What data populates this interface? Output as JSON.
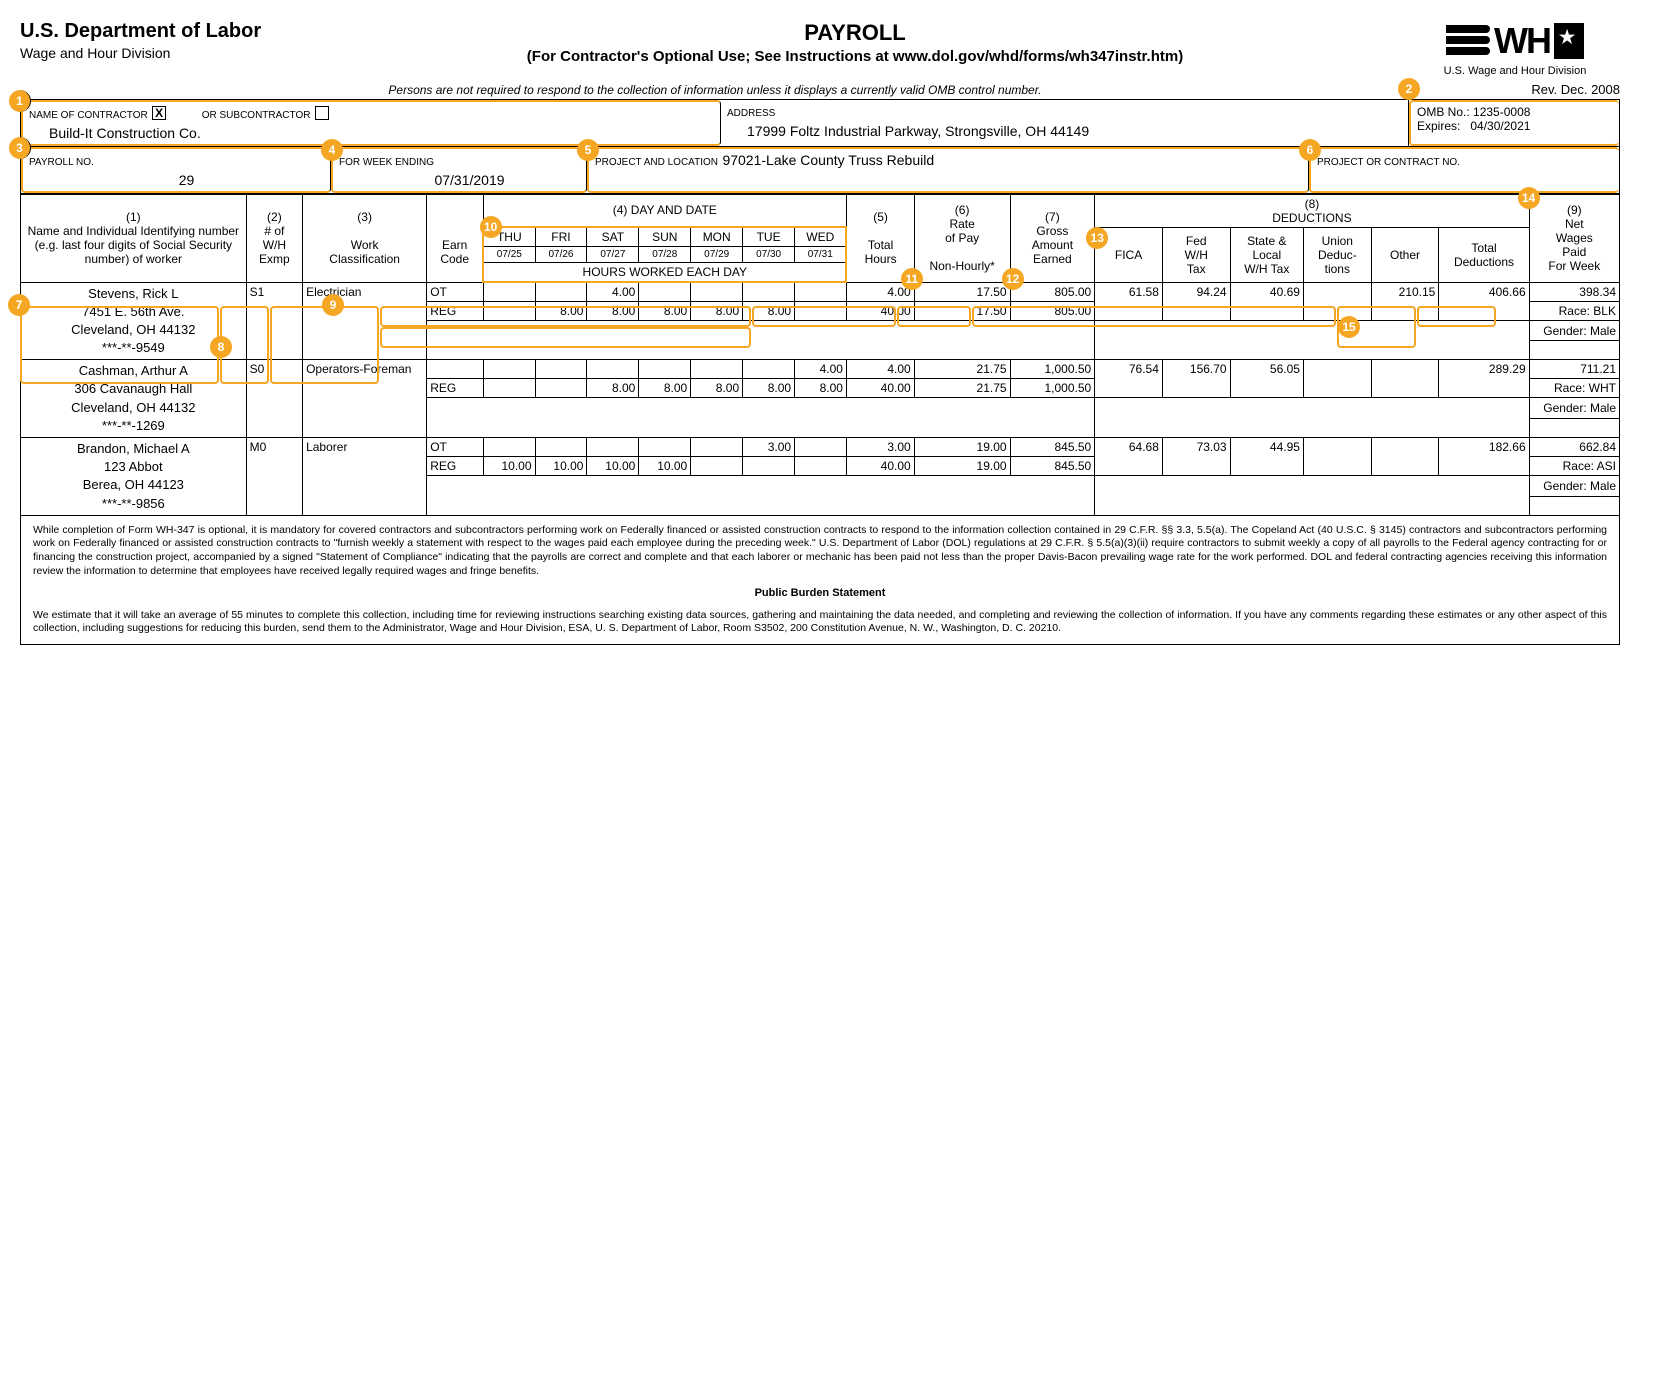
{
  "header": {
    "dept": "U.S. Department of Labor",
    "dept_sub": "Wage and Hour Division",
    "title": "PAYROLL",
    "subtitle": "(For Contractor's Optional Use; See Instructions at www.dol.gov/whd/forms/wh347instr.htm)",
    "disclaimer": "Persons are not required to respond to the collection of information unless it displays a currently valid OMB control number.",
    "logo_sub": "U.S. Wage and Hour Division",
    "rev": "Rev. Dec. 2008",
    "omb_label": "OMB No.:",
    "omb": "1235-0008",
    "expires_label": "Expires:",
    "expires": "04/30/2021"
  },
  "info": {
    "contractor_label": "NAME OF CONTRACTOR",
    "contractor_checked": "X",
    "or_sub_label": "OR SUBCONTRACTOR",
    "sub_checked": "",
    "contractor_name": "Build-It Construction Co.",
    "address_label": "ADDRESS",
    "address": "17999 Foltz Industrial Parkway, Strongsville, OH 44149",
    "payroll_no_label": "PAYROLL NO.",
    "payroll_no": "29",
    "week_ending_label": "FOR WEEK ENDING",
    "week_ending": "07/31/2019",
    "project_loc_label": "PROJECT AND LOCATION",
    "project_loc": "97021-Lake County Truss Rebuild",
    "contract_no_label": "PROJECT OR CONTRACT NO.",
    "contract_no": ""
  },
  "columns": {
    "c1": "(1)\nName and Individual Identifying number (e.g. last four digits of Social Security number) of worker",
    "c2": "(2)\n# of W/H Exmp",
    "c3": "(3)\nWork Classification",
    "earn_code": "Earn Code",
    "c4": "(4) DAY AND DATE",
    "hours_worked": "HOURS WORKED EACH DAY",
    "c5": "(5)\nTotal Hours",
    "c6": "(6)\nRate of Pay\nNon-Hourly*",
    "c7": "(7)\nGross Amount Earned",
    "c8": "(8)\nDEDUCTIONS",
    "fica": "FICA",
    "fed": "Fed W/H Tax",
    "state": "State & Local W/H Tax",
    "union": "Union Deduc-tions",
    "other": "Other",
    "total_ded": "Total Deductions",
    "c9": "(9)\nNet Wages Paid For Week"
  },
  "days": {
    "names": [
      "THU",
      "FRI",
      "SAT",
      "SUN",
      "MON",
      "TUE",
      "WED"
    ],
    "dates": [
      "07/25",
      "07/26",
      "07/27",
      "07/28",
      "07/29",
      "07/30",
      "07/31"
    ]
  },
  "employees": [
    {
      "name": "Stevens, Rick L",
      "addr1": "7451 E. 56th Ave.",
      "addr2": "Cleveland, OH 44132",
      "ssn": "***-**-9549",
      "wh": "S1",
      "class": "Electrician",
      "rows": [
        {
          "code": "OT",
          "h": [
            "",
            "",
            "4.00",
            "",
            "",
            "",
            ""
          ],
          "tot": "4.00",
          "rate": "17.50",
          "gross": "805.00"
        },
        {
          "code": "REG",
          "h": [
            "",
            "8.00",
            "8.00",
            "8.00",
            "8.00",
            "8.00",
            ""
          ],
          "tot": "40.00",
          "rate": "17.50",
          "gross": "805.00"
        }
      ],
      "fica": "61.58",
      "fed": "94.24",
      "state": "40.69",
      "union": "",
      "other": "210.15",
      "total_ded": "406.66",
      "net": "398.34",
      "race": "Race:  BLK",
      "gender": "Gender:  Male"
    },
    {
      "name": "Cashman, Arthur A",
      "addr1": "306 Cavanaugh Hall",
      "addr2": "Cleveland, OH 44132",
      "ssn": "***-**-1269",
      "wh": "S0",
      "class": "Operators-Foreman",
      "rows": [
        {
          "code": "",
          "h": [
            "",
            "",
            "",
            "",
            "",
            "",
            "4.00"
          ],
          "tot": "4.00",
          "rate": "21.75",
          "gross": "1,000.50"
        },
        {
          "code": "REG",
          "h": [
            "",
            "",
            "8.00",
            "8.00",
            "8.00",
            "8.00",
            "8.00"
          ],
          "tot": "40.00",
          "rate": "21.75",
          "gross": "1,000.50"
        }
      ],
      "fica": "76.54",
      "fed": "156.70",
      "state": "56.05",
      "union": "",
      "other": "",
      "total_ded": "289.29",
      "net": "711.21",
      "race": "Race: WHT",
      "gender": "Gender:  Male"
    },
    {
      "name": "Brandon, Michael A",
      "addr1": "123 Abbot",
      "addr2": "Berea, OH 44123",
      "ssn": "***-**-9856",
      "wh": "M0",
      "class": "Laborer",
      "rows": [
        {
          "code": "OT",
          "h": [
            "",
            "",
            "",
            "",
            "",
            "3.00",
            ""
          ],
          "tot": "3.00",
          "rate": "19.00",
          "gross": "845.50"
        },
        {
          "code": "REG",
          "h": [
            "10.00",
            "10.00",
            "10.00",
            "10.00",
            "",
            "",
            ""
          ],
          "tot": "40.00",
          "rate": "19.00",
          "gross": "845.50"
        }
      ],
      "fica": "64.68",
      "fed": "73.03",
      "state": "44.95",
      "union": "",
      "other": "",
      "total_ded": "182.66",
      "net": "662.84",
      "race": "Race:  ASI",
      "gender": "Gender:  Male"
    }
  ],
  "footer": {
    "p1": "While completion of Form WH-347 is optional, it is mandatory for covered contractors and subcontractors performing work on Federally financed or assisted construction contracts to respond to the information collection contained in 29 C.F.R. §§ 3.3, 5.5(a). The Copeland Act (40 U.S.C. § 3145) contractors and subcontractors performing work on Federally financed or assisted construction contracts to \"furnish weekly a statement with respect to the wages paid each employee during the preceding week.\" U.S. Department of Labor (DOL) regulations at 29 C.F.R. § 5.5(a)(3)(ii) require contractors to submit weekly a copy of all payrolls to the Federal agency contracting for or financing the construction project, accompanied by a signed \"Statement of Compliance\" indicating that the payrolls are correct and complete and that each laborer or mechanic has been paid not less than the proper Davis-Bacon prevailing wage rate for the work performed. DOL and federal contracting agencies receiving this information review the information to determine that employees have received legally required wages and fringe benefits.",
    "burden": "Public Burden Statement",
    "p2": "We estimate that it will take an average of 55 minutes to complete this collection, including time for reviewing instructions searching existing data sources, gathering and maintaining the data needed, and completing and reviewing the collection of information.  If you have any comments regarding these estimates or any other aspect of this collection, including suggestions for reducing this burden, send them to the Administrator, Wage and Hour Division, ESA, U. S. Department of Labor, Room S3502, 200 Constitution Avenue, N. W., Washington, D. C. 20210."
  },
  "badges": {
    "b1": "1",
    "b2": "2",
    "b3": "3",
    "b4": "4",
    "b5": "5",
    "b6": "6",
    "b7": "7",
    "b8": "8",
    "b9": "9",
    "b10": "10",
    "b11": "11",
    "b12": "12",
    "b13": "13",
    "b14": "14",
    "b15": "15"
  }
}
